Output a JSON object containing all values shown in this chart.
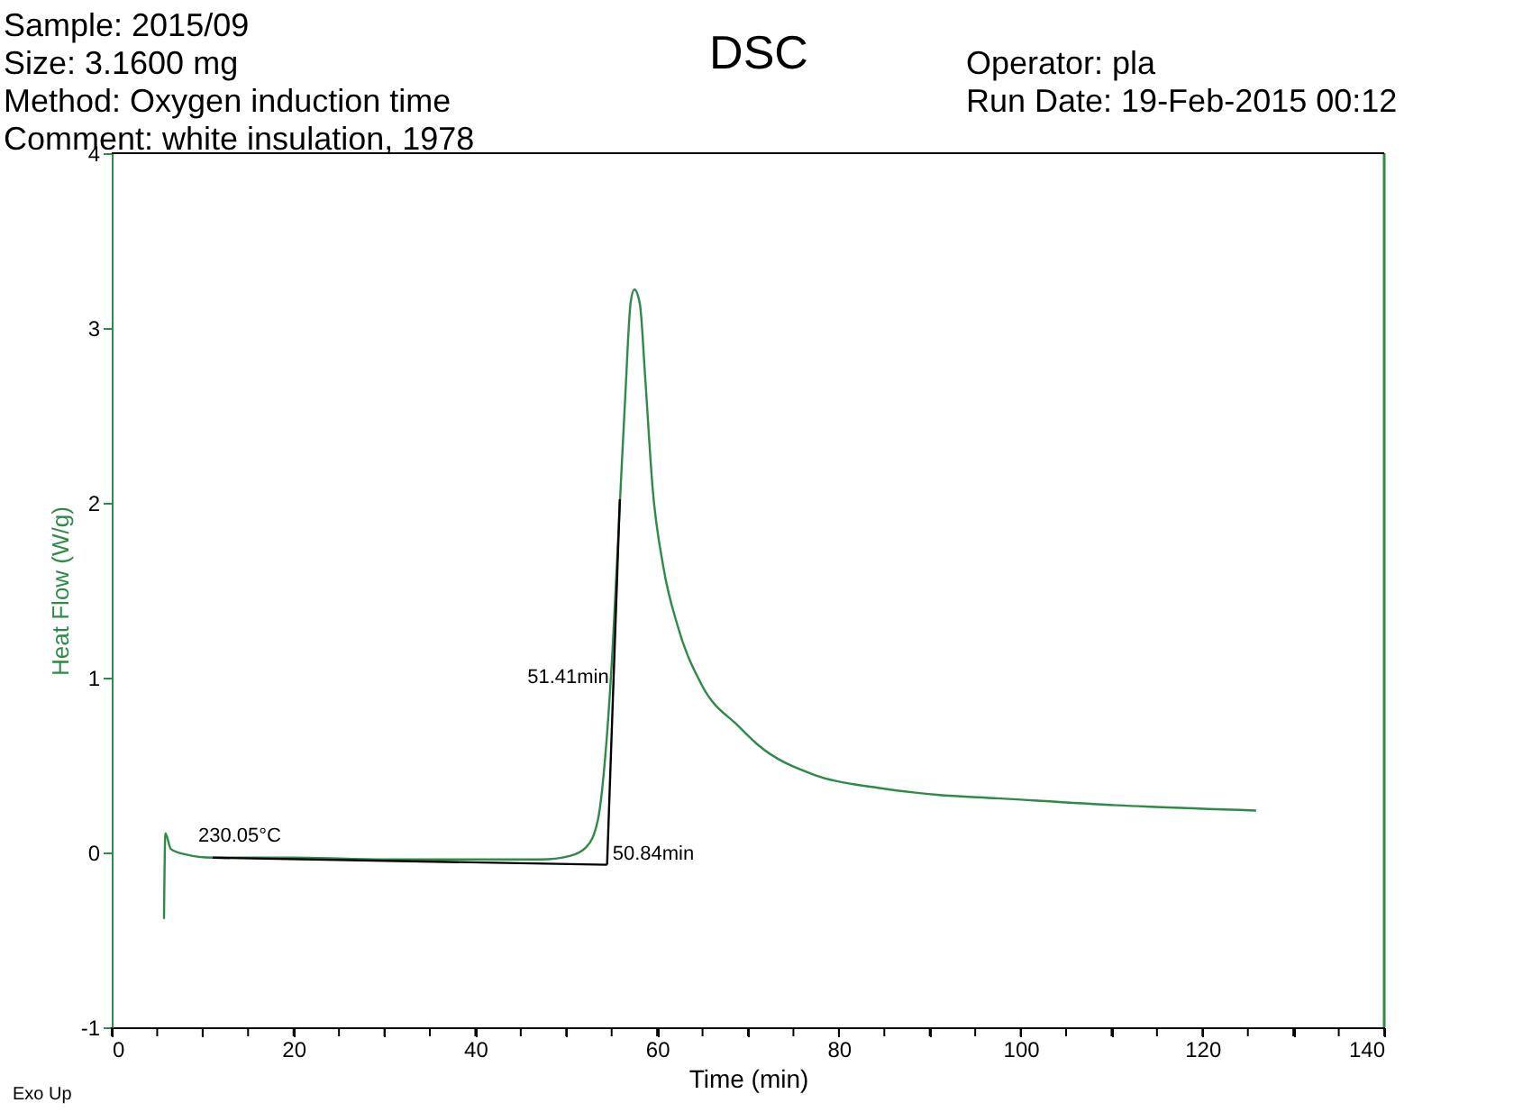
{
  "chart_data": {
    "type": "line",
    "title": "DSC",
    "xlabel": "Time (min)",
    "ylabel": "Heat Flow (W/g)",
    "xlim": [
      0,
      140
    ],
    "ylim": [
      -1,
      4
    ],
    "xticks": [
      0,
      {
        "value": 5,
        "label": null
      },
      {
        "value": 10,
        "label": null
      },
      {
        "value": 15,
        "label": null
      },
      20,
      {
        "value": 25,
        "label": null
      },
      {
        "value": 30,
        "label": null
      },
      {
        "value": 35,
        "label": null
      },
      40,
      {
        "value": 45,
        "label": null
      },
      {
        "value": 50,
        "label": null
      },
      {
        "value": 55,
        "label": null
      },
      60,
      {
        "value": 65,
        "label": null
      },
      {
        "value": 70,
        "label": null
      },
      {
        "value": 75,
        "label": null
      },
      80,
      {
        "value": 85,
        "label": null
      },
      {
        "value": 90,
        "label": null
      },
      {
        "value": 95,
        "label": null
      },
      100,
      {
        "value": 105,
        "label": null
      },
      {
        "value": 110,
        "label": null
      },
      {
        "value": 115,
        "label": null
      },
      120,
      {
        "value": 125,
        "label": null
      },
      {
        "value": 130,
        "label": null
      },
      {
        "value": 135,
        "label": null
      },
      140
    ],
    "yticks": [
      -1,
      0,
      1,
      2,
      3,
      4
    ],
    "grid": false,
    "marker": "none",
    "line_style": "solid",
    "series": [
      {
        "color": "#2e8b47",
        "x": [
          5.75,
          5.9,
          6.5,
          8,
          11.1,
          20,
          30,
          40,
          47.2,
          50.4,
          52.2,
          53.5,
          54.3,
          55.1,
          55.9,
          56.5,
          57.1,
          57.5,
          58.1,
          58.7,
          59.5,
          60.7,
          62.3,
          65,
          69,
          71,
          77.5,
          84.3,
          90.8,
          97.4,
          110.6,
          125.9
        ],
        "values": [
          -0.38,
          0.11,
          0.02,
          -0.01,
          -0.03,
          -0.03,
          -0.04,
          -0.04,
          -0.04,
          -0.02,
          0.03,
          0.19,
          0.55,
          1.16,
          1.99,
          2.61,
          3.15,
          3.22,
          3.14,
          2.71,
          2.09,
          1.63,
          1.29,
          0.95,
          0.72,
          0.62,
          0.44,
          0.37,
          0.33,
          0.31,
          0.27,
          0.24
        ]
      },
      {
        "color": "#000000",
        "x": [
          11.1,
          54.5
        ],
        "values": [
          -0.03,
          -0.07
        ]
      },
      {
        "color": "#000000",
        "x": [
          54.5,
          55.9
        ],
        "values": [
          -0.07,
          2.02
        ]
      }
    ],
    "annotations": [
      "Sample: 2015/09",
      "Size:  3.1600 mg",
      "Method: Oxygen induction time",
      "Comment: white insulation, 1978",
      "Operator: pla",
      "Run Date: 19-Feb-2015 00:12",
      "Exo Up",
      {
        "text": "230.05°C",
        "x": 11.1,
        "y": -0.03
      },
      {
        "text": "51.41min",
        "x": 55.1,
        "y": 1.0
      },
      {
        "text": "50.84min",
        "x": 54.5,
        "y": -0.07
      }
    ]
  }
}
